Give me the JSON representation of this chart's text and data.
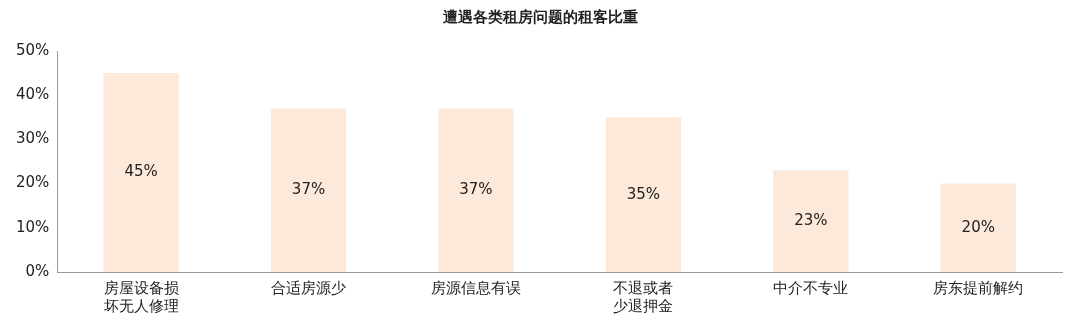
{
  "chart_data": {
    "type": "bar",
    "title": "遭遇各类租房问题的租客比重",
    "categories": [
      "房屋设备损坏无人修理",
      "合适房源少",
      "房源信息有误",
      "不退或者少退押金",
      "中介不专业",
      "房东提前解约"
    ],
    "values": [
      45,
      37,
      37,
      35,
      23,
      20
    ],
    "value_labels": [
      "45%",
      "37%",
      "37%",
      "35%",
      "23%",
      "20%"
    ],
    "color": "#fce9da",
    "ylim": [
      0,
      50
    ],
    "yticks": [
      {
        "value": 0,
        "label": "0%"
      },
      {
        "value": 10,
        "label": "10%"
      },
      {
        "value": 20,
        "label": "20%"
      },
      {
        "value": 30,
        "label": "30%"
      },
      {
        "value": 40,
        "label": "40%"
      },
      {
        "value": 50,
        "label": "50%"
      }
    ],
    "grid": false,
    "legend": false
  }
}
